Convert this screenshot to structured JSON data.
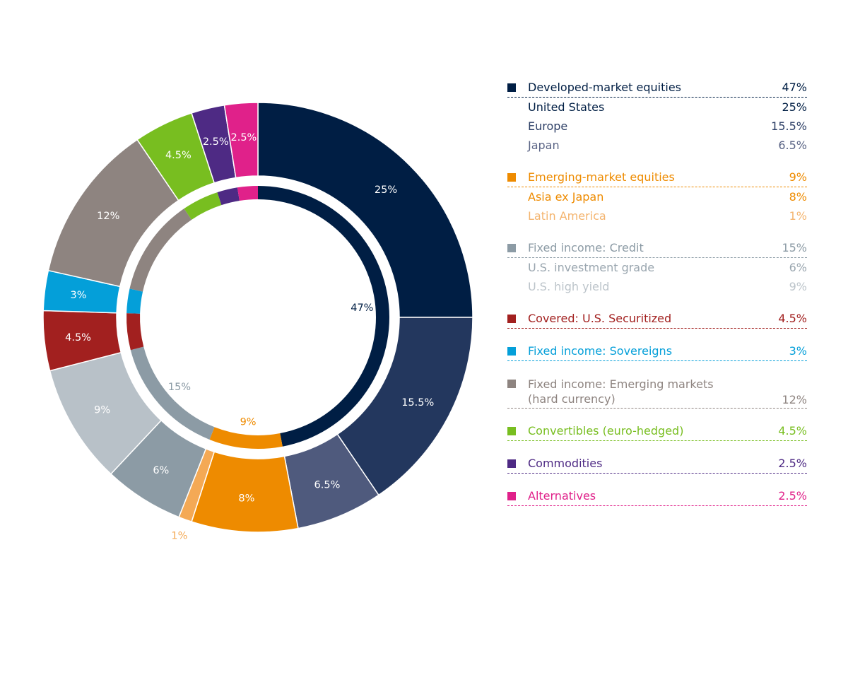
{
  "chart_data": {
    "type": "pie",
    "subtype": "nested-donut",
    "inner_ring": [
      {
        "name": "Developed-market equities",
        "value": 47,
        "label": "47%",
        "color": "#001E44",
        "label_color": "#001E44"
      },
      {
        "name": "Emerging-market equities",
        "value": 9,
        "label": "9%",
        "color": "#EE8B00",
        "label_color": "#EE8B00"
      },
      {
        "name": "Fixed income: Credit",
        "value": 15,
        "label": "15%",
        "color": "#8C9BA5",
        "label_color": "#8C9BA5"
      },
      {
        "name": "Covered: U.S. Securitized",
        "value": 4.5,
        "label": "",
        "color": "#A2201F",
        "label_color": "#A2201F"
      },
      {
        "name": "Fixed income: Sovereigns",
        "value": 3,
        "label": "",
        "color": "#049FD9",
        "label_color": "#049FD9"
      },
      {
        "name": "Fixed income: Emerging markets (hard currency)",
        "value": 12,
        "label": "",
        "color": "#8E8480",
        "label_color": "#8E8480"
      },
      {
        "name": "Convertibles (euro-hedged)",
        "value": 4.5,
        "label": "",
        "color": "#78BE20",
        "label_color": "#78BE20"
      },
      {
        "name": "Commodities",
        "value": 2.5,
        "label": "",
        "color": "#4E2A84",
        "label_color": "#4E2A84"
      },
      {
        "name": "Alternatives",
        "value": 2.5,
        "label": "",
        "color": "#E0218A",
        "label_color": "#E0218A"
      }
    ],
    "outer_ring": [
      {
        "name": "United States",
        "value": 25,
        "label": "25%",
        "color": "#001E44",
        "label_color": "#ffffff"
      },
      {
        "name": "Europe",
        "value": 15.5,
        "label": "15.5%",
        "color": "#23375E",
        "label_color": "#ffffff"
      },
      {
        "name": "Japan",
        "value": 6.5,
        "label": "6.5%",
        "color": "#4F5A7D",
        "label_color": "#ffffff"
      },
      {
        "name": "Asia ex Japan",
        "value": 8,
        "label": "8%",
        "color": "#EE8B00",
        "label_color": "#ffffff"
      },
      {
        "name": "Latin America",
        "value": 1,
        "label": "1%",
        "color": "#F4A955",
        "label_color": "#F4A955",
        "label_outside": true
      },
      {
        "name": "U.S. investment grade",
        "value": 6,
        "label": "6%",
        "color": "#8C9BA5",
        "label_color": "#ffffff"
      },
      {
        "name": "U.S. high yield",
        "value": 9,
        "label": "9%",
        "color": "#B8C1C8",
        "label_color": "#ffffff"
      },
      {
        "name": "Covered: U.S. Securitized",
        "value": 4.5,
        "label": "4.5%",
        "color": "#A2201F",
        "label_color": "#ffffff"
      },
      {
        "name": "Fixed income: Sovereigns",
        "value": 3,
        "label": "3%",
        "color": "#049FD9",
        "label_color": "#ffffff"
      },
      {
        "name": "Fixed income: Emerging markets (hard currency)",
        "value": 12,
        "label": "12%",
        "color": "#8E8480",
        "label_color": "#ffffff"
      },
      {
        "name": "Convertibles (euro-hedged)",
        "value": 4.5,
        "label": "4.5%",
        "color": "#78BE20",
        "label_color": "#ffffff"
      },
      {
        "name": "Commodities",
        "value": 2.5,
        "label": "2.5%",
        "color": "#4E2A84",
        "label_color": "#ffffff"
      },
      {
        "name": "Alternatives",
        "value": 2.5,
        "label": "2.5%",
        "color": "#E0218A",
        "label_color": "#ffffff"
      }
    ]
  },
  "legend": [
    {
      "label": "Developed-market equities",
      "value": "47%",
      "color": "#001E44",
      "subs": [
        {
          "label": "United States",
          "value": "25%",
          "color": "#001E44"
        },
        {
          "label": "Europe",
          "value": "15.5%",
          "color": "#2D3F66"
        },
        {
          "label": "Japan",
          "value": "6.5%",
          "color": "#5A6485"
        }
      ]
    },
    {
      "label": "Emerging-market equities",
      "value": "9%",
      "color": "#EE8B00",
      "subs": [
        {
          "label": "Asia ex Japan",
          "value": "8%",
          "color": "#EE8B00"
        },
        {
          "label": "Latin America",
          "value": "1%",
          "color": "#F4B46E"
        }
      ]
    },
    {
      "label": "Fixed income: Credit",
      "value": "15%",
      "color": "#8C9BA5",
      "subs": [
        {
          "label": "U.S. investment grade",
          "value": "6%",
          "color": "#9AA6AF"
        },
        {
          "label": "U.S. high yield",
          "value": "9%",
          "color": "#BCC4CA"
        }
      ]
    },
    {
      "label": "Covered: U.S. Securitized",
      "value": "4.5%",
      "color": "#A2201F",
      "subs": []
    },
    {
      "label": "Fixed income: Sovereigns",
      "value": "3%",
      "color": "#049FD9",
      "subs": []
    },
    {
      "label": "Fixed income: Emerging markets (hard currency)",
      "value": "12%",
      "color": "#8E8480",
      "subs": [],
      "two_line": true
    },
    {
      "label": "Convertibles (euro-hedged)",
      "value": "4.5%",
      "color": "#78BE20",
      "subs": []
    },
    {
      "label": "Commodities",
      "value": "2.5%",
      "color": "#4E2A84",
      "subs": []
    },
    {
      "label": "Alternatives",
      "value": "2.5%",
      "color": "#E0218A",
      "subs": []
    }
  ]
}
